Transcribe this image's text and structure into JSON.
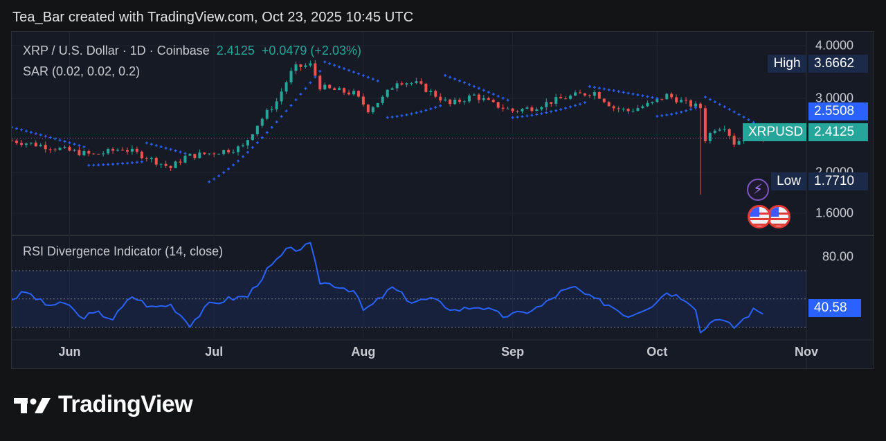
{
  "header": {
    "text": "Tea_Bar created with TradingView.com, Oct 23, 2025 10:45 UTC"
  },
  "legend": {
    "symbol": "XRP / U.S. Dollar · 1D · Coinbase",
    "price": "2.4125",
    "change": "+0.0479 (+2.03%)",
    "sar": "SAR (0.02, 0.02, 0.2)",
    "rsi": "RSI Divergence Indicator (14, close)"
  },
  "tags": {
    "high_label": "High",
    "high_value": "3.6662",
    "sar_value": "2.5508",
    "symbol_label": "XRPUSD",
    "symbol_value": "2.4125",
    "low_label": "Low",
    "low_value": "1.7710",
    "rsi_value": "40.58"
  },
  "colors": {
    "up": "#26a69a",
    "down": "#ef5350",
    "sar": "#2962ff",
    "rsi": "#2962ff",
    "panel": "#161a25",
    "text": "#c9cbd1",
    "tag_dark": "#1c2a4a",
    "tag_blue": "#2962ff"
  },
  "icons": {
    "event_icon": "lightning-icon",
    "flag_icon": "us-flag-icon"
  },
  "logo": {
    "text": "TradingView"
  },
  "chart_data": {
    "type": "candlestick",
    "price_axis": {
      "ticks": [
        1.6,
        2.0,
        3.0,
        4.0
      ],
      "tick_labels": [
        "1.6000",
        "2.0000",
        "3.0000",
        "4.0000"
      ],
      "ylim": [
        1.45,
        4.25
      ],
      "scale": "log"
    },
    "x_labels": [
      "Jun",
      "Jul",
      "Aug",
      "Sep",
      "Oct",
      "Nov"
    ],
    "x_label_dates": [
      "2025-06-01",
      "2025-07-01",
      "2025-08-01",
      "2025-09-01",
      "2025-10-01",
      "2025-11-01"
    ],
    "date_range": [
      "2025-05-20",
      "2025-11-01"
    ],
    "close_keypoints": [
      [
        "2025-05-20",
        2.38
      ],
      [
        "2025-05-26",
        2.32
      ],
      [
        "2025-06-01",
        2.25
      ],
      [
        "2025-06-06",
        2.2
      ],
      [
        "2025-06-12",
        2.28
      ],
      [
        "2025-06-16",
        2.2
      ],
      [
        "2025-06-22",
        2.05
      ],
      [
        "2025-06-25",
        2.18
      ],
      [
        "2025-06-30",
        2.22
      ],
      [
        "2025-07-03",
        2.25
      ],
      [
        "2025-07-07",
        2.3
      ],
      [
        "2025-07-10",
        2.6
      ],
      [
        "2025-07-14",
        2.95
      ],
      [
        "2025-07-17",
        3.45
      ],
      [
        "2025-07-18",
        3.55
      ],
      [
        "2025-07-21",
        3.6
      ],
      [
        "2025-07-23",
        3.2
      ],
      [
        "2025-07-25",
        3.15
      ],
      [
        "2025-07-30",
        3.08
      ],
      [
        "2025-08-02",
        2.82
      ],
      [
        "2025-08-05",
        3.0
      ],
      [
        "2025-08-08",
        3.3
      ],
      [
        "2025-08-12",
        3.25
      ],
      [
        "2025-08-15",
        3.1
      ],
      [
        "2025-08-19",
        2.9
      ],
      [
        "2025-08-24",
        3.05
      ],
      [
        "2025-08-28",
        2.9
      ],
      [
        "2025-09-01",
        2.8
      ],
      [
        "2025-09-05",
        2.85
      ],
      [
        "2025-09-10",
        2.97
      ],
      [
        "2025-09-14",
        3.05
      ],
      [
        "2025-09-18",
        3.1
      ],
      [
        "2025-09-22",
        2.85
      ],
      [
        "2025-09-25",
        2.8
      ],
      [
        "2025-09-30",
        2.92
      ],
      [
        "2025-10-03",
        3.05
      ],
      [
        "2025-10-07",
        2.92
      ],
      [
        "2025-10-10",
        2.85
      ],
      [
        "2025-10-11",
        2.4
      ],
      [
        "2025-10-13",
        2.55
      ],
      [
        "2025-10-15",
        2.58
      ],
      [
        "2025-10-17",
        2.35
      ],
      [
        "2025-10-20",
        2.45
      ],
      [
        "2025-10-23",
        2.4125
      ]
    ],
    "extreme_wicks": [
      {
        "date": "2025-07-18",
        "high": 3.6662
      },
      {
        "date": "2025-10-10",
        "low": 1.771
      }
    ],
    "sar_segments": [
      {
        "side": "above",
        "from": "2025-05-20",
        "to": "2025-06-04",
        "start": 2.56,
        "end": 2.3
      },
      {
        "side": "below",
        "from": "2025-06-05",
        "to": "2025-06-16",
        "start": 2.08,
        "end": 2.12
      },
      {
        "side": "above",
        "from": "2025-06-17",
        "to": "2025-06-25",
        "start": 2.35,
        "end": 2.22
      },
      {
        "side": "below",
        "from": "2025-06-30",
        "to": "2025-07-23",
        "start": 1.9,
        "end": 3.48
      },
      {
        "side": "above",
        "from": "2025-07-24",
        "to": "2025-08-04",
        "start": 3.66,
        "end": 3.3
      },
      {
        "side": "below",
        "from": "2025-08-06",
        "to": "2025-08-17",
        "start": 2.7,
        "end": 2.88
      },
      {
        "side": "above",
        "from": "2025-08-18",
        "to": "2025-08-31",
        "start": 3.4,
        "end": 2.97
      },
      {
        "side": "below",
        "from": "2025-09-01",
        "to": "2025-09-16",
        "start": 2.7,
        "end": 2.93
      },
      {
        "side": "above",
        "from": "2025-09-17",
        "to": "2025-10-01",
        "start": 3.2,
        "end": 3.0
      },
      {
        "side": "below",
        "from": "2025-10-01",
        "to": "2025-10-09",
        "start": 2.72,
        "end": 2.85
      },
      {
        "side": "above",
        "from": "2025-10-11",
        "to": "2025-10-23",
        "start": 3.02,
        "end": 2.5508
      }
    ],
    "rsi": {
      "label": "RSI Divergence Indicator (14, close)",
      "ticks": [
        80
      ],
      "tick_labels": [
        "80.00"
      ],
      "ylim": [
        22,
        92
      ],
      "overbought": 70,
      "oversold": 30,
      "midline": 50,
      "keypoints": [
        [
          "2025-05-20",
          50
        ],
        [
          "2025-05-23",
          55
        ],
        [
          "2025-05-27",
          46
        ],
        [
          "2025-06-01",
          46
        ],
        [
          "2025-06-03",
          37
        ],
        [
          "2025-06-07",
          40
        ],
        [
          "2025-06-10",
          36
        ],
        [
          "2025-06-14",
          52
        ],
        [
          "2025-06-18",
          44
        ],
        [
          "2025-06-22",
          46
        ],
        [
          "2025-06-26",
          32
        ],
        [
          "2025-06-30",
          46
        ],
        [
          "2025-07-04",
          50
        ],
        [
          "2025-07-08",
          52
        ],
        [
          "2025-07-12",
          70
        ],
        [
          "2025-07-16",
          84
        ],
        [
          "2025-07-19",
          86
        ],
        [
          "2025-07-21",
          88
        ],
        [
          "2025-07-23",
          62
        ],
        [
          "2025-07-26",
          60
        ],
        [
          "2025-07-30",
          56
        ],
        [
          "2025-08-01",
          42
        ],
        [
          "2025-08-03",
          46
        ],
        [
          "2025-08-07",
          58
        ],
        [
          "2025-08-11",
          48
        ],
        [
          "2025-08-15",
          50
        ],
        [
          "2025-08-20",
          42
        ],
        [
          "2025-08-25",
          45
        ],
        [
          "2025-08-30",
          38
        ],
        [
          "2025-09-03",
          40
        ],
        [
          "2025-09-07",
          45
        ],
        [
          "2025-09-11",
          55
        ],
        [
          "2025-09-14",
          58
        ],
        [
          "2025-09-17",
          51
        ],
        [
          "2025-09-21",
          46
        ],
        [
          "2025-09-25",
          38
        ],
        [
          "2025-09-30",
          46
        ],
        [
          "2025-10-03",
          55
        ],
        [
          "2025-10-07",
          50
        ],
        [
          "2025-10-09",
          44
        ],
        [
          "2025-10-10",
          26
        ],
        [
          "2025-10-13",
          37
        ],
        [
          "2025-10-17",
          30
        ],
        [
          "2025-10-21",
          42
        ],
        [
          "2025-10-23",
          40.58
        ]
      ]
    }
  }
}
